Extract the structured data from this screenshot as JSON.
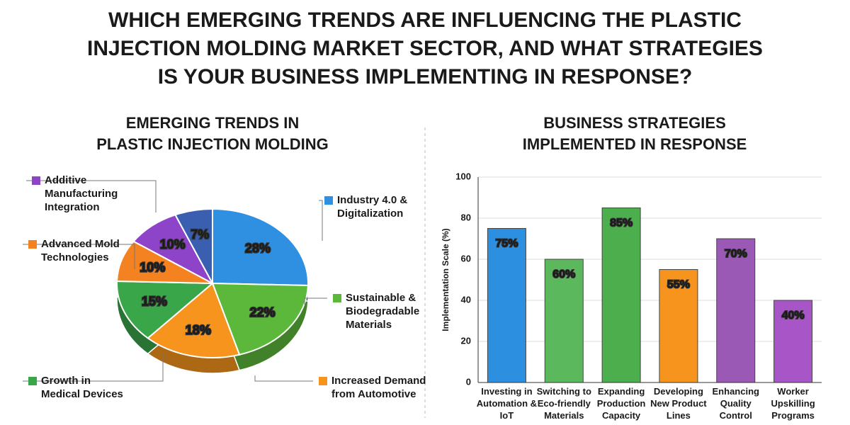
{
  "title": "WHICH EMERGING TRENDS ARE INFLUENCING THE PLASTIC INJECTION MOLDING MARKET SECTOR, AND WHAT STRATEGIES IS YOUR BUSINESS IMPLEMENTING IN RESPONSE?",
  "chart_data": [
    {
      "type": "pie",
      "title": "EMERGING TRENDS IN PLASTIC INJECTION MOLDING",
      "categories": [
        "Industry 4.0 & Digitalization",
        "Sustainable & Biodegradable Materials",
        "Increased Demand from Automotive",
        "Growth in Medical Devices",
        "Advanced Mold Technologies",
        "Additive Manufacturing Integration",
        null
      ],
      "values": [
        28,
        22,
        18,
        15,
        10,
        10,
        7
      ],
      "value_labels": [
        "28%",
        "22%",
        "18%",
        "15%",
        "10%",
        "10%",
        "7%"
      ],
      "colors": [
        "#2f8fe0",
        "#5cb83a",
        "#f7941d",
        "#3aa64a",
        "#f58220",
        "#8e44c8",
        "#3a5fb0"
      ]
    },
    {
      "type": "bar",
      "title": "BUSINESS STRATEGIES IMPLEMENTED IN RESPONSE",
      "y_label": "Implementation Scale (%)",
      "categories": [
        "Investing in Automation & IoT",
        "Switching to Eco-friendly Materials",
        "Expanding Production Capacity",
        "Developing New Product Lines",
        "Enhancing Quality Control",
        "Worker Upskilling Programs"
      ],
      "values": [
        75,
        60,
        85,
        55,
        70,
        40
      ],
      "value_labels": [
        "75%",
        "60%",
        "85%",
        "55%",
        "70%",
        "40%"
      ],
      "colors": [
        "#2d8fe0",
        "#5cb85c",
        "#4cae4c",
        "#f7941d",
        "#9b59b6",
        "#a855c8"
      ],
      "ylim": [
        0,
        100
      ],
      "yticks": [
        0,
        20,
        40,
        60,
        80,
        100
      ],
      "grid": true
    }
  ]
}
